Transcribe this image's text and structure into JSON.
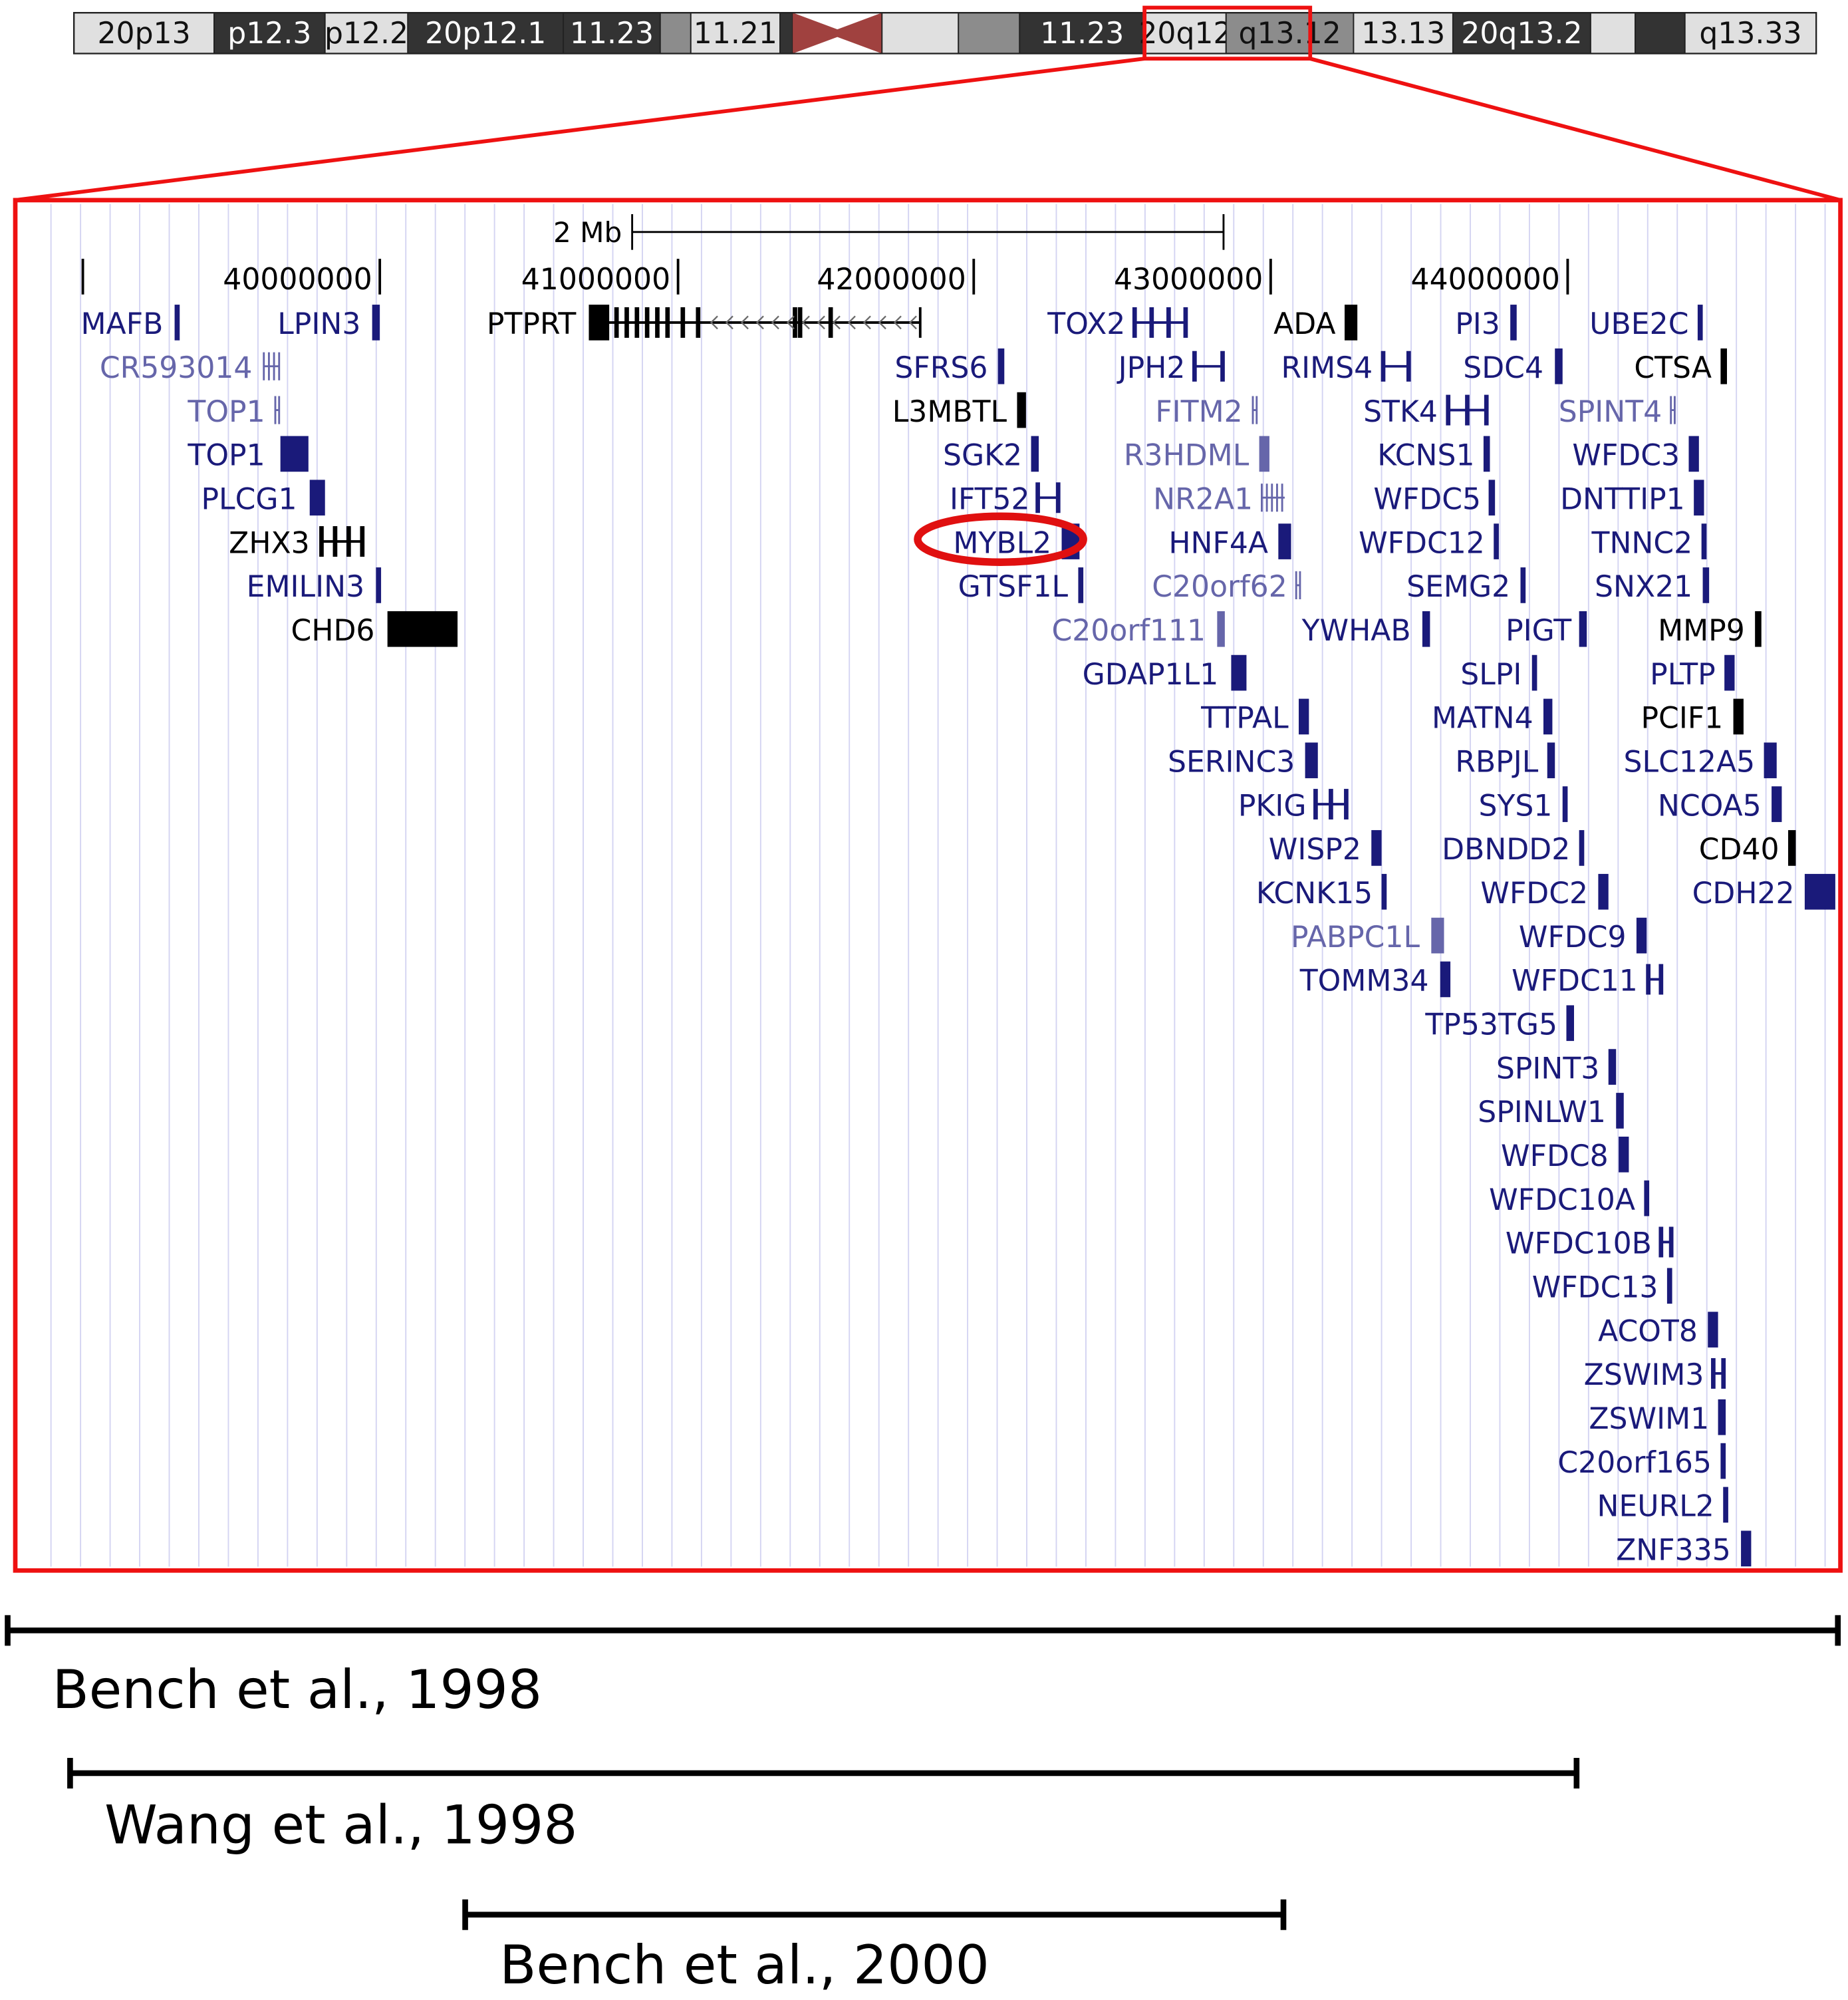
{
  "chromosome": {
    "bands": [
      {
        "label": "20p13",
        "stain": "light"
      },
      {
        "label": "p12.3",
        "stain": "dark"
      },
      {
        "label": "p12.2",
        "stain": "light"
      },
      {
        "label": "20p12.1",
        "stain": "dark"
      },
      {
        "label": "11.23",
        "stain": "dark"
      },
      {
        "label": "",
        "stain": "mid"
      },
      {
        "label": "11.21",
        "stain": "light"
      },
      {
        "label": "",
        "stain": "dark"
      },
      {
        "label": "",
        "stain": "centromere"
      },
      {
        "label": "",
        "stain": "light"
      },
      {
        "label": "",
        "stain": "mid"
      },
      {
        "label": "11.23",
        "stain": "dark"
      },
      {
        "label": "20q12",
        "stain": "light"
      },
      {
        "label": "q13.12",
        "stain": "mid"
      },
      {
        "label": "13.13",
        "stain": "light"
      },
      {
        "label": "20q13.2",
        "stain": "dark"
      },
      {
        "label": "",
        "stain": "light"
      },
      {
        "label": "",
        "stain": "dark"
      },
      {
        "label": "q13.33",
        "stain": "light"
      }
    ],
    "colors": {
      "light": "#e0e0e0",
      "mid": "#8c8c8c",
      "dark": "#333333",
      "centromere": "#a0413f",
      "highlight": "#ee1111"
    }
  },
  "browser": {
    "scale_label": "2 Mb",
    "positions": [
      "40000000",
      "41000000",
      "42000000",
      "43000000",
      "44000000"
    ],
    "highlighted_gene": "MYBL2",
    "colors": {
      "known": "#1a1a7a",
      "predicted": "#6666aa",
      "other": "#000000"
    },
    "genes": [
      {
        "name": "MAFB",
        "tone": "known"
      },
      {
        "name": "LPIN3",
        "tone": "known"
      },
      {
        "name": "PTPRT",
        "tone": "other"
      },
      {
        "name": "TOX2",
        "tone": "known"
      },
      {
        "name": "ADA",
        "tone": "other"
      },
      {
        "name": "PI3",
        "tone": "known"
      },
      {
        "name": "UBE2C",
        "tone": "known"
      },
      {
        "name": "CR593014",
        "tone": "predicted"
      },
      {
        "name": "SFRS6",
        "tone": "known"
      },
      {
        "name": "JPH2",
        "tone": "known"
      },
      {
        "name": "RIMS4",
        "tone": "known"
      },
      {
        "name": "SDC4",
        "tone": "known"
      },
      {
        "name": "CTSA",
        "tone": "other"
      },
      {
        "name": "TOP1",
        "tone": "predicted"
      },
      {
        "name": "L3MBTL",
        "tone": "other"
      },
      {
        "name": "FITM2",
        "tone": "predicted"
      },
      {
        "name": "STK4",
        "tone": "known"
      },
      {
        "name": "SPINT4",
        "tone": "predicted"
      },
      {
        "name": "TOP1",
        "tone": "known"
      },
      {
        "name": "SGK2",
        "tone": "known"
      },
      {
        "name": "R3HDML",
        "tone": "predicted"
      },
      {
        "name": "KCNS1",
        "tone": "known"
      },
      {
        "name": "WFDC3",
        "tone": "known"
      },
      {
        "name": "PLCG1",
        "tone": "known"
      },
      {
        "name": "IFT52",
        "tone": "known"
      },
      {
        "name": "NR2A1",
        "tone": "predicted"
      },
      {
        "name": "WFDC5",
        "tone": "known"
      },
      {
        "name": "DNTTIP1",
        "tone": "known"
      },
      {
        "name": "ZHX3",
        "tone": "other"
      },
      {
        "name": "MYBL2",
        "tone": "known"
      },
      {
        "name": "HNF4A",
        "tone": "known"
      },
      {
        "name": "WFDC12",
        "tone": "known"
      },
      {
        "name": "TNNC2",
        "tone": "known"
      },
      {
        "name": "EMILIN3",
        "tone": "known"
      },
      {
        "name": "GTSF1L",
        "tone": "known"
      },
      {
        "name": "C20orf62",
        "tone": "predicted"
      },
      {
        "name": "SEMG2",
        "tone": "known"
      },
      {
        "name": "SNX21",
        "tone": "known"
      },
      {
        "name": "CHD6",
        "tone": "other"
      },
      {
        "name": "C20orf111",
        "tone": "predicted"
      },
      {
        "name": "YWHAB",
        "tone": "known"
      },
      {
        "name": "PIGT",
        "tone": "known"
      },
      {
        "name": "MMP9",
        "tone": "other"
      },
      {
        "name": "GDAP1L1",
        "tone": "known"
      },
      {
        "name": "SLPI",
        "tone": "known"
      },
      {
        "name": "PLTP",
        "tone": "known"
      },
      {
        "name": "TTPAL",
        "tone": "known"
      },
      {
        "name": "MATN4",
        "tone": "known"
      },
      {
        "name": "PCIF1",
        "tone": "other"
      },
      {
        "name": "SERINC3",
        "tone": "known"
      },
      {
        "name": "RBPJL",
        "tone": "known"
      },
      {
        "name": "SLC12A5",
        "tone": "known"
      },
      {
        "name": "PKIG",
        "tone": "known"
      },
      {
        "name": "SYS1",
        "tone": "known"
      },
      {
        "name": "NCOA5",
        "tone": "known"
      },
      {
        "name": "WISP2",
        "tone": "known"
      },
      {
        "name": "DBNDD2",
        "tone": "known"
      },
      {
        "name": "CD40",
        "tone": "other"
      },
      {
        "name": "KCNK15",
        "tone": "known"
      },
      {
        "name": "WFDC2",
        "tone": "known"
      },
      {
        "name": "CDH22",
        "tone": "known"
      },
      {
        "name": "PABPC1L",
        "tone": "predicted"
      },
      {
        "name": "WFDC9",
        "tone": "known"
      },
      {
        "name": "TOMM34",
        "tone": "known"
      },
      {
        "name": "WFDC11",
        "tone": "known"
      },
      {
        "name": "TP53TG5",
        "tone": "known"
      },
      {
        "name": "SPINT3",
        "tone": "known"
      },
      {
        "name": "SPINLW1",
        "tone": "known"
      },
      {
        "name": "WFDC8",
        "tone": "known"
      },
      {
        "name": "WFDC10A",
        "tone": "known"
      },
      {
        "name": "WFDC10B",
        "tone": "known"
      },
      {
        "name": "WFDC13",
        "tone": "known"
      },
      {
        "name": "ACOT8",
        "tone": "known"
      },
      {
        "name": "ZSWIM3",
        "tone": "known"
      },
      {
        "name": "ZSWIM1",
        "tone": "known"
      },
      {
        "name": "C20orf165",
        "tone": "known"
      },
      {
        "name": "NEURL2",
        "tone": "known"
      },
      {
        "name": "ZNF335",
        "tone": "known"
      }
    ]
  },
  "references": [
    {
      "label": "Bench et al., 1998"
    },
    {
      "label": "Wang et al., 1998"
    },
    {
      "label": "Bench et al., 2000"
    }
  ]
}
